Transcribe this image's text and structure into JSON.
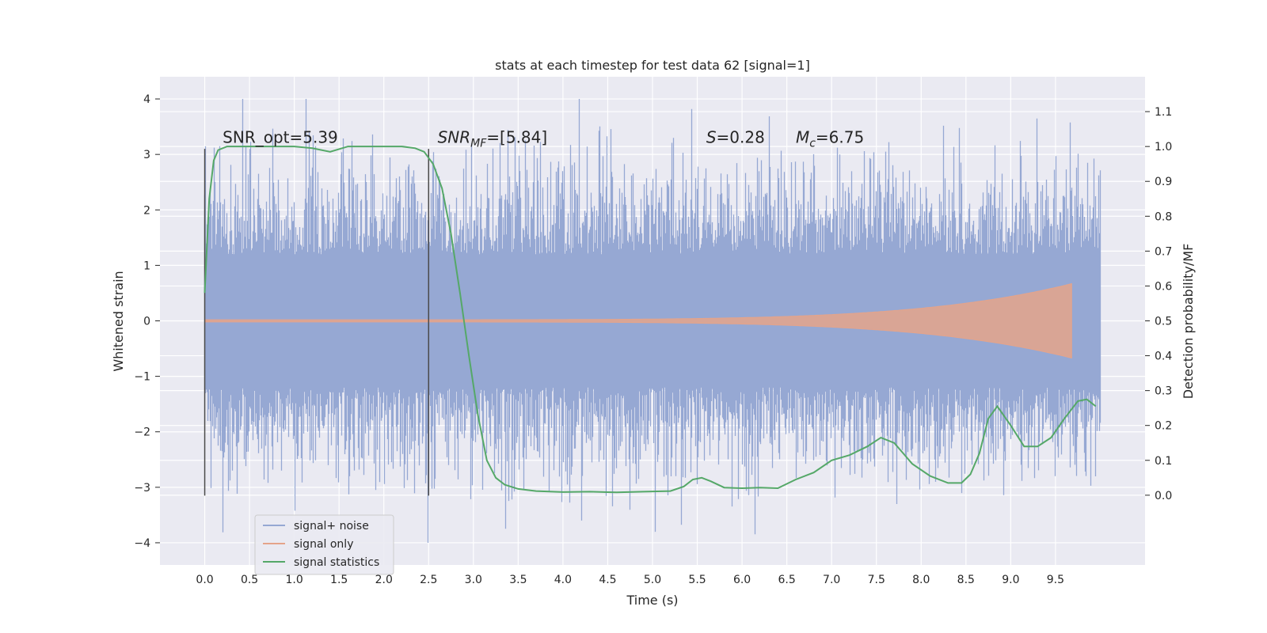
{
  "chart_data": {
    "type": "line",
    "title": "stats at each timestep for test data 62 [signal=1]",
    "xlabel": "Time (s)",
    "ylabel_left": "Whitened strain",
    "ylabel_right": "Detection probability/MF",
    "xlim": [
      -0.5,
      10.5
    ],
    "ylim_left": [
      -4.4,
      4.4
    ],
    "ylim_right": [
      -0.2,
      1.2
    ],
    "x_ticks": [
      0.0,
      0.5,
      1.0,
      1.5,
      2.0,
      2.5,
      3.0,
      3.5,
      4.0,
      4.5,
      5.0,
      5.5,
      6.0,
      6.5,
      7.0,
      7.5,
      8.0,
      8.5,
      9.0,
      9.5
    ],
    "x_tick_labels": [
      "0.0",
      "0.5",
      "1.0",
      "1.5",
      "2.0",
      "2.5",
      "3.0",
      "3.5",
      "4.0",
      "4.5",
      "5.0",
      "5.5",
      "6.0",
      "6.5",
      "7.0",
      "7.5",
      "8.0",
      "8.5",
      "9.0",
      "9.5"
    ],
    "y_ticks_left": [
      4,
      3,
      2,
      1,
      0,
      -1,
      -2,
      -3,
      -4
    ],
    "y_tick_labels_left": [
      "4",
      "3",
      "2",
      "1",
      "0",
      "−1",
      "−2",
      "−3",
      "−4"
    ],
    "y_ticks_right": [
      1.1,
      1.0,
      0.9,
      0.8,
      0.7,
      0.6,
      0.5,
      0.4,
      0.3,
      0.2,
      0.1,
      0.0
    ],
    "y_tick_labels_right": [
      "1.1",
      "1.0",
      "0.9",
      "0.8",
      "0.7",
      "0.6",
      "0.5",
      "0.4",
      "0.3",
      "0.2",
      "0.1",
      "0.0"
    ],
    "grid": true,
    "legend_position": "lower-left",
    "noise": {
      "t_start": 0.0,
      "t_end": 10.0,
      "range_left": [
        -4.0,
        4.0
      ]
    },
    "signal_only": {
      "t_start": 0.0,
      "t_end": 9.68,
      "amplitude_end": 0.65
    },
    "vertical_markers": [
      {
        "x": 0.0,
        "y_range": [
          -3.15,
          3.1
        ]
      },
      {
        "x": 2.5,
        "y_range": [
          -3.15,
          3.1
        ]
      }
    ],
    "series": [
      {
        "name": "signal+ noise",
        "color": "#96a8d3"
      },
      {
        "name": "signal only",
        "color": "#e5a48a"
      },
      {
        "name": "signal statistics",
        "color": "#55a868",
        "axis": "right",
        "x": [
          0.0,
          0.05,
          0.1,
          0.15,
          0.25,
          0.5,
          0.8,
          1.0,
          1.2,
          1.4,
          1.6,
          1.8,
          2.0,
          2.2,
          2.35,
          2.45,
          2.55,
          2.65,
          2.75,
          2.85,
          2.95,
          3.05,
          3.15,
          3.25,
          3.35,
          3.5,
          3.7,
          4.0,
          4.3,
          4.6,
          4.9,
          5.2,
          5.35,
          5.45,
          5.55,
          5.65,
          5.8,
          6.0,
          6.2,
          6.4,
          6.6,
          6.8,
          7.0,
          7.2,
          7.4,
          7.55,
          7.7,
          7.9,
          8.1,
          8.3,
          8.45,
          8.55,
          8.65,
          8.75,
          8.85,
          9.0,
          9.15,
          9.3,
          9.45,
          9.6,
          9.75,
          9.85,
          9.95
        ],
        "y": [
          0.58,
          0.85,
          0.96,
          0.99,
          1.0,
          1.0,
          1.0,
          1.0,
          0.995,
          0.985,
          1.0,
          1.0,
          1.0,
          1.0,
          0.995,
          0.985,
          0.95,
          0.88,
          0.75,
          0.58,
          0.4,
          0.23,
          0.1,
          0.05,
          0.03,
          0.018,
          0.012,
          0.009,
          0.01,
          0.008,
          0.01,
          0.012,
          0.025,
          0.045,
          0.05,
          0.04,
          0.022,
          0.02,
          0.022,
          0.02,
          0.045,
          0.065,
          0.1,
          0.115,
          0.14,
          0.165,
          0.15,
          0.09,
          0.055,
          0.035,
          0.035,
          0.06,
          0.12,
          0.22,
          0.255,
          0.2,
          0.14,
          0.14,
          0.165,
          0.22,
          0.27,
          0.275,
          0.255
        ]
      }
    ],
    "annotations": [
      {
        "text": "SNR_opt=5.39",
        "x": 0.2,
        "y_right": 1.01
      },
      {
        "text": "SNR",
        "sub": "MF",
        "rest": "=[5.84]",
        "italic": true,
        "x": 2.6,
        "y_right": 1.01
      },
      {
        "text": "S",
        "rest": "=0.28",
        "italic": true,
        "x": 5.6,
        "y_right": 1.01
      },
      {
        "text": "M",
        "sub": "c",
        "rest": "=6.75",
        "italic": true,
        "x": 6.6,
        "y_right": 1.01
      }
    ]
  }
}
